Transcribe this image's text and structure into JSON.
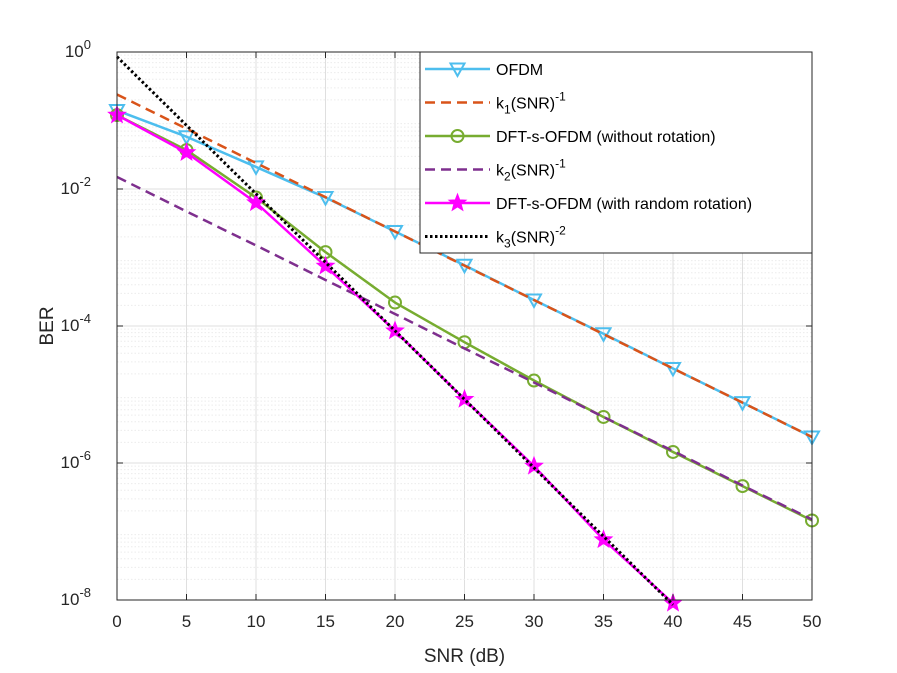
{
  "chart_data": {
    "type": "line",
    "x_scale": "linear",
    "y_scale": "log",
    "xlabel": "SNR (dB)",
    "ylabel": "BER",
    "xlim": [
      0,
      50
    ],
    "ylim": [
      1e-08,
      1
    ],
    "grid": true,
    "minor_grid": true,
    "legend_position": "top-right",
    "x_ticks": [
      0,
      5,
      10,
      15,
      20,
      25,
      30,
      35,
      40,
      45,
      50
    ],
    "x_tick_labels": [
      "0",
      "5",
      "10",
      "15",
      "20",
      "25",
      "30",
      "35",
      "40",
      "45",
      "50"
    ],
    "y_ticks": [
      1e-08,
      1e-06,
      0.0001,
      0.01,
      1
    ],
    "y_tick_labels": [
      {
        "base": "10",
        "exp": "-8"
      },
      {
        "base": "10",
        "exp": "-6"
      },
      {
        "base": "10",
        "exp": "-4"
      },
      {
        "base": "10",
        "exp": "-2"
      },
      {
        "base": "10",
        "exp": "0"
      }
    ],
    "series": [
      {
        "name": "OFDM",
        "legend": {
          "main": "OFDM"
        },
        "color": "#4DBEEE",
        "line_style": "solid",
        "marker": "triangle-down",
        "x": [
          0,
          5,
          10,
          15,
          20,
          25,
          30,
          35,
          40,
          45,
          50
        ],
        "y": [
          0.14,
          0.058,
          0.021,
          0.0075,
          0.0024,
          0.00077,
          0.00024,
          7.7e-05,
          2.4e-05,
          7.6e-06,
          2.4e-06
        ]
      },
      {
        "name": "k1(SNR)^-1",
        "legend": {
          "main": "k",
          "sub": "1",
          "mid": "(SNR)",
          "sup": "-1"
        },
        "color": "#D95319",
        "line_style": "dashed",
        "marker": "none",
        "x": [
          0,
          5,
          10,
          15,
          20,
          25,
          30,
          35,
          40,
          45,
          50
        ],
        "y": [
          0.24,
          0.076,
          0.024,
          0.0076,
          0.0024,
          0.00076,
          0.00024,
          7.6e-05,
          2.4e-05,
          7.6e-06,
          2.4e-06
        ]
      },
      {
        "name": "DFT-s-OFDM (without rotation)",
        "legend": {
          "main": "DFT-s-OFDM (without rotation)"
        },
        "color": "#77AC30",
        "line_style": "solid",
        "marker": "circle",
        "x": [
          0,
          5,
          10,
          15,
          20,
          25,
          30,
          35,
          40,
          45,
          50
        ],
        "y": [
          0.12,
          0.037,
          0.0075,
          0.0012,
          0.00022,
          5.8e-05,
          1.6e-05,
          4.7e-06,
          1.45e-06,
          4.6e-07,
          1.45e-07
        ]
      },
      {
        "name": "k2(SNR)^-1",
        "legend": {
          "main": "k",
          "sub": "2",
          "mid": "(SNR)",
          "sup": "-1"
        },
        "color": "#7E2F8E",
        "line_style": "dashed",
        "marker": "none",
        "x": [
          0,
          5,
          10,
          15,
          20,
          25,
          30,
          35,
          40,
          45,
          50
        ],
        "y": [
          0.015,
          0.0047,
          0.0015,
          0.00047,
          0.00015,
          4.7e-05,
          1.5e-05,
          4.7e-06,
          1.5e-06,
          4.7e-07,
          1.5e-07
        ]
      },
      {
        "name": "DFT-s-OFDM (with random rotation)",
        "legend": {
          "main": "DFT-s-OFDM (with random rotation)"
        },
        "color": "#FF00FF",
        "line_style": "solid",
        "marker": "star",
        "x": [
          0,
          5,
          10,
          15,
          20,
          25,
          30,
          35,
          40
        ],
        "y": [
          0.12,
          0.034,
          0.0063,
          0.00075,
          8.5e-05,
          8.5e-06,
          9e-07,
          7.6e-08,
          9e-09
        ]
      },
      {
        "name": "k3(SNR)^-2",
        "legend": {
          "main": "k",
          "sub": "3",
          "mid": "(SNR)",
          "sup": "-2"
        },
        "color": "#000000",
        "line_style": "dotted",
        "marker": "none",
        "x": [
          0,
          5,
          10,
          15,
          20,
          25,
          30,
          35,
          40
        ],
        "y": [
          0.85,
          0.085,
          0.0085,
          0.00085,
          8.5e-05,
          8.5e-06,
          8.5e-07,
          8.5e-08,
          8.5e-09
        ]
      }
    ]
  }
}
